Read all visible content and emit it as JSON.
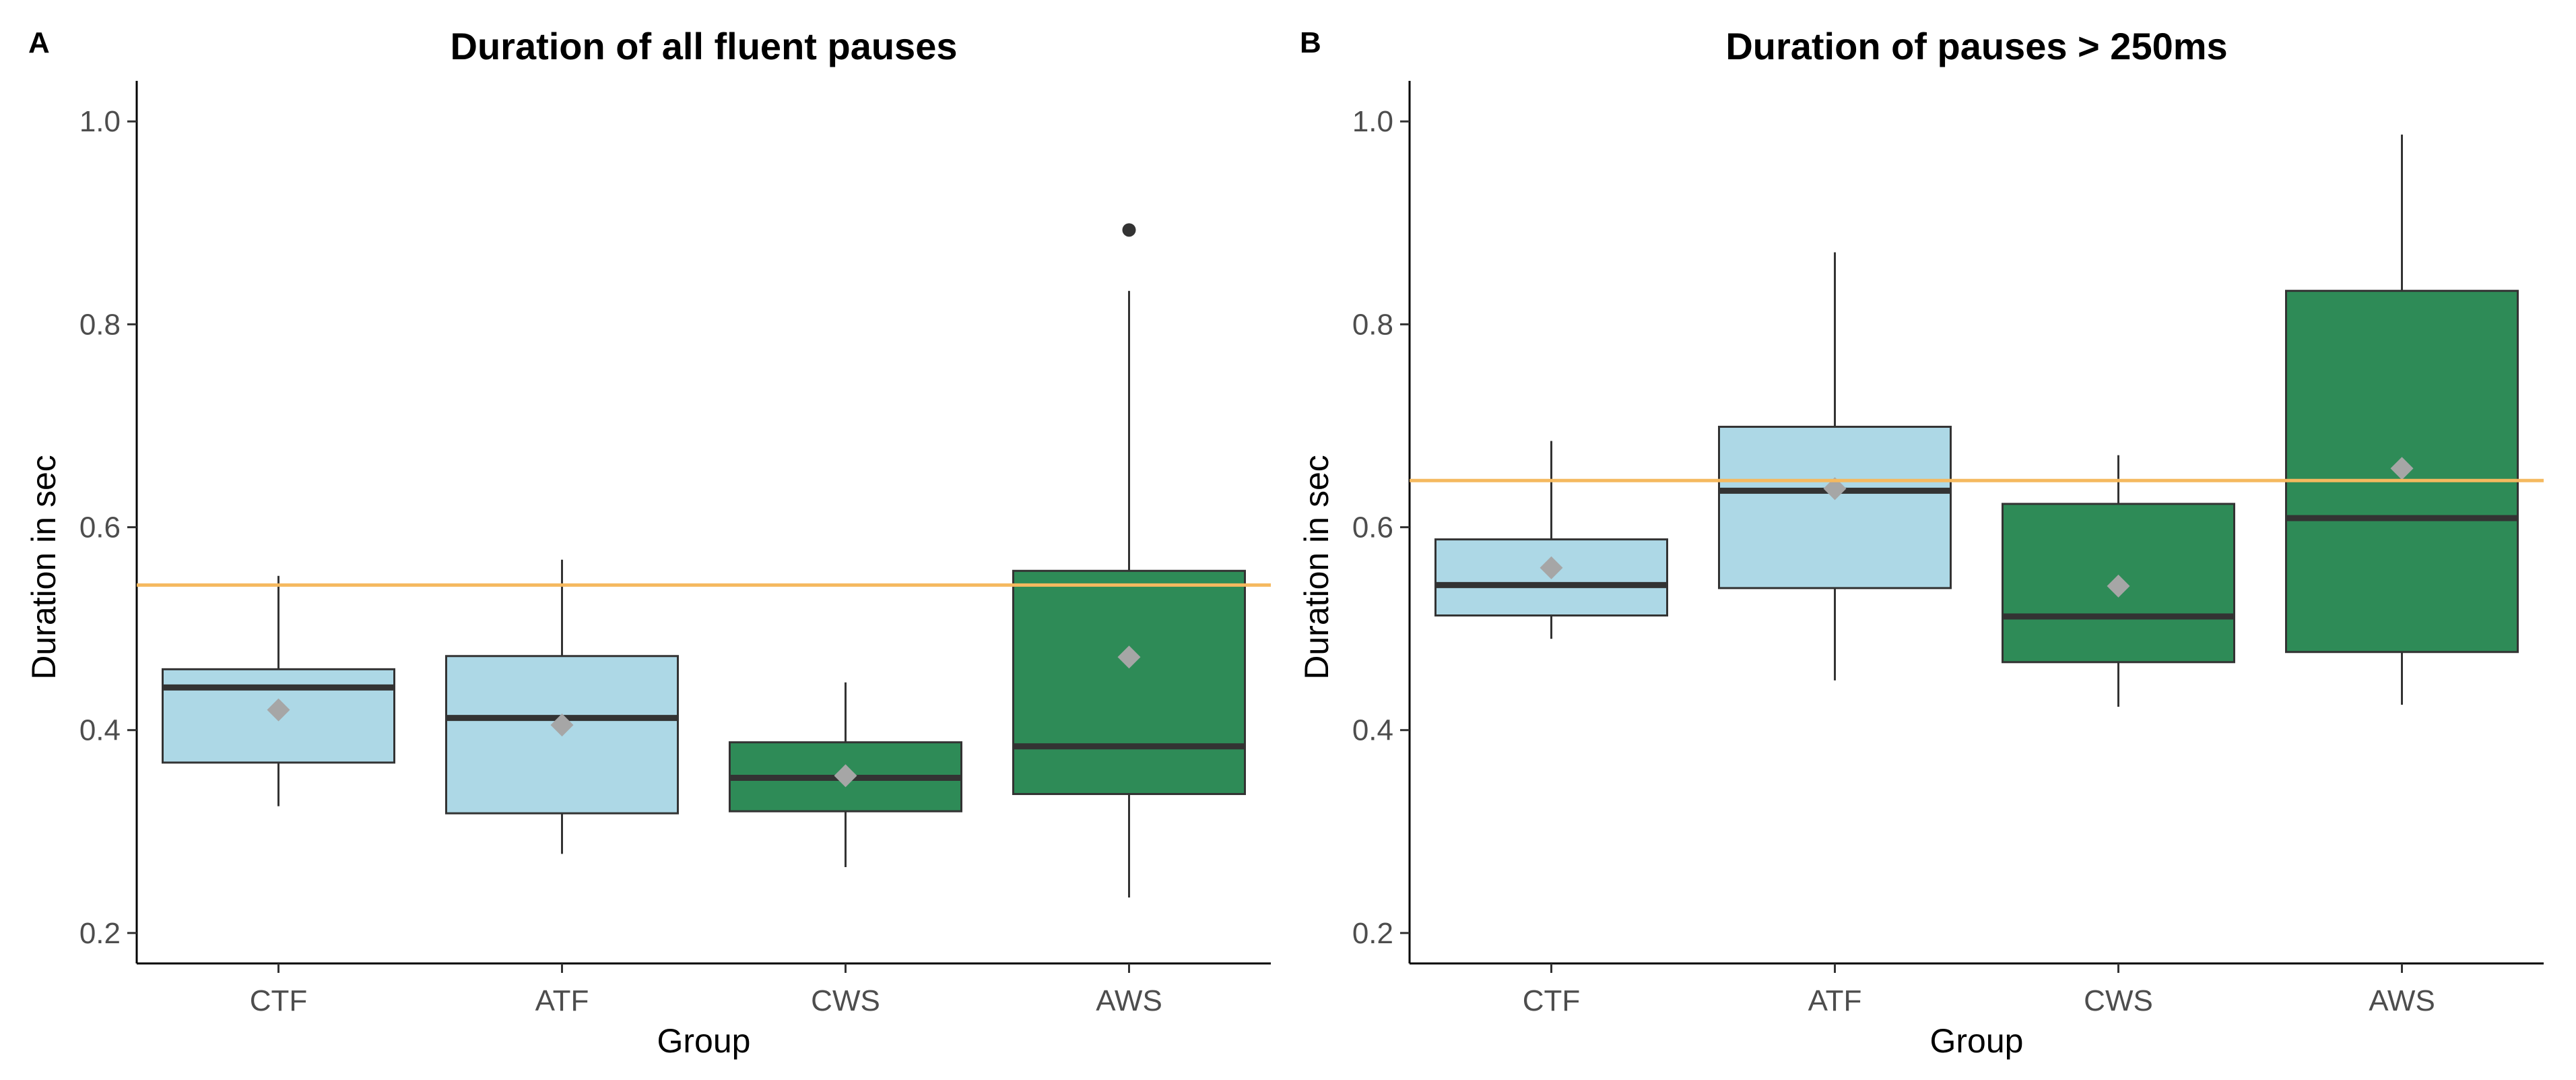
{
  "chart_data": [
    {
      "type": "box",
      "panel_label": "A",
      "title": "Duration of all fluent pauses",
      "xlabel": "Group",
      "ylabel": "Duration in sec",
      "ylim": [
        0.17,
        1.04
      ],
      "yticks": [
        0.2,
        0.4,
        0.6,
        0.8,
        1.0
      ],
      "ytick_labels": [
        "0.2",
        "0.4",
        "0.6",
        "0.8",
        "1.0"
      ],
      "grid": false,
      "reference_line": {
        "y": 0.543,
        "color": "#f5b95f"
      },
      "categories": [
        "CTF",
        "ATF",
        "CWS",
        "AWS"
      ],
      "fills": [
        "#add8e6",
        "#add8e6",
        "#2e8b57",
        "#2e8b57"
      ],
      "boxes": [
        {
          "group": "CTF",
          "whisker_low": 0.325,
          "q1": 0.368,
          "median": 0.442,
          "q3": 0.46,
          "whisker_high": 0.552,
          "mean": 0.42,
          "outliers": []
        },
        {
          "group": "ATF",
          "whisker_low": 0.278,
          "q1": 0.318,
          "median": 0.412,
          "q3": 0.473,
          "whisker_high": 0.568,
          "mean": 0.405,
          "outliers": []
        },
        {
          "group": "CWS",
          "whisker_low": 0.265,
          "q1": 0.32,
          "median": 0.353,
          "q3": 0.388,
          "whisker_high": 0.447,
          "mean": 0.355,
          "outliers": []
        },
        {
          "group": "AWS",
          "whisker_low": 0.235,
          "q1": 0.337,
          "median": 0.384,
          "q3": 0.557,
          "whisker_high": 0.833,
          "mean": 0.472,
          "outliers": [
            0.893
          ]
        }
      ]
    },
    {
      "type": "box",
      "panel_label": "B",
      "title": "Duration of pauses > 250ms",
      "xlabel": "Group",
      "ylabel": "Duration in sec",
      "ylim": [
        0.17,
        1.04
      ],
      "yticks": [
        0.2,
        0.4,
        0.6,
        0.8,
        1.0
      ],
      "ytick_labels": [
        "0.2",
        "0.4",
        "0.6",
        "0.8",
        "1.0"
      ],
      "grid": false,
      "reference_line": {
        "y": 0.646,
        "color": "#f5b95f"
      },
      "categories": [
        "CTF",
        "ATF",
        "CWS",
        "AWS"
      ],
      "fills": [
        "#add8e6",
        "#add8e6",
        "#2e8b57",
        "#2e8b57"
      ],
      "boxes": [
        {
          "group": "CTF",
          "whisker_low": 0.49,
          "q1": 0.513,
          "median": 0.543,
          "q3": 0.588,
          "whisker_high": 0.685,
          "mean": 0.56,
          "outliers": []
        },
        {
          "group": "ATF",
          "whisker_low": 0.449,
          "q1": 0.54,
          "median": 0.636,
          "q3": 0.699,
          "whisker_high": 0.871,
          "mean": 0.638,
          "outliers": []
        },
        {
          "group": "CWS",
          "whisker_low": 0.423,
          "q1": 0.467,
          "median": 0.512,
          "q3": 0.623,
          "whisker_high": 0.671,
          "mean": 0.542,
          "outliers": []
        },
        {
          "group": "AWS",
          "whisker_low": 0.425,
          "q1": 0.477,
          "median": 0.609,
          "q3": 0.833,
          "whisker_high": 0.987,
          "mean": 0.658,
          "outliers": []
        }
      ]
    }
  ]
}
